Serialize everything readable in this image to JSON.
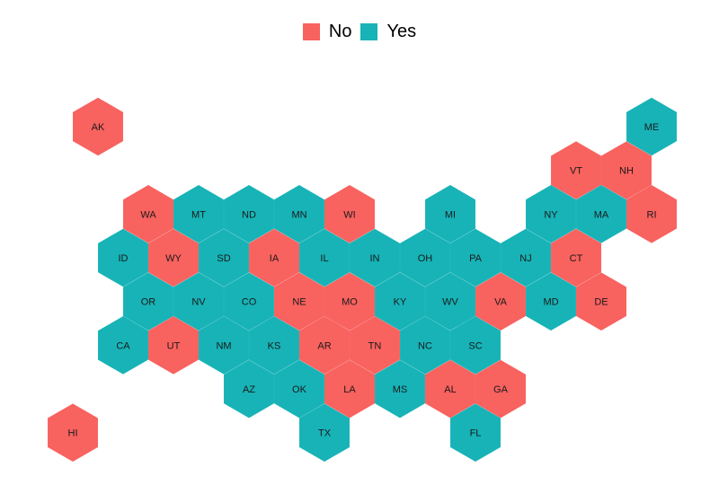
{
  "colors": {
    "No": "#F8625F",
    "Yes": "#17B3B7"
  },
  "legend": [
    {
      "key": "No",
      "label": "No"
    },
    {
      "key": "Yes",
      "label": "Yes"
    }
  ],
  "states": [
    {
      "abbr": "AK",
      "value": "No",
      "col": 0,
      "row": 0
    },
    {
      "abbr": "ME",
      "value": "Yes",
      "col": 11,
      "row": 0
    },
    {
      "abbr": "VT",
      "value": "No",
      "col": 10,
      "row": 1
    },
    {
      "abbr": "NH",
      "value": "No",
      "col": 11,
      "row": 1
    },
    {
      "abbr": "WA",
      "value": "No",
      "col": 1,
      "row": 2
    },
    {
      "abbr": "MT",
      "value": "Yes",
      "col": 2,
      "row": 2
    },
    {
      "abbr": "ND",
      "value": "Yes",
      "col": 3,
      "row": 2
    },
    {
      "abbr": "MN",
      "value": "Yes",
      "col": 4,
      "row": 2
    },
    {
      "abbr": "WI",
      "value": "No",
      "col": 5,
      "row": 2
    },
    {
      "abbr": "MI",
      "value": "Yes",
      "col": 7,
      "row": 2
    },
    {
      "abbr": "NY",
      "value": "Yes",
      "col": 9,
      "row": 2
    },
    {
      "abbr": "MA",
      "value": "Yes",
      "col": 10,
      "row": 2
    },
    {
      "abbr": "RI",
      "value": "No",
      "col": 11,
      "row": 2
    },
    {
      "abbr": "ID",
      "value": "Yes",
      "col": 1,
      "row": 3
    },
    {
      "abbr": "WY",
      "value": "No",
      "col": 2,
      "row": 3
    },
    {
      "abbr": "SD",
      "value": "Yes",
      "col": 3,
      "row": 3
    },
    {
      "abbr": "IA",
      "value": "No",
      "col": 4,
      "row": 3
    },
    {
      "abbr": "IL",
      "value": "Yes",
      "col": 5,
      "row": 3
    },
    {
      "abbr": "IN",
      "value": "Yes",
      "col": 6,
      "row": 3
    },
    {
      "abbr": "OH",
      "value": "Yes",
      "col": 7,
      "row": 3
    },
    {
      "abbr": "PA",
      "value": "Yes",
      "col": 8,
      "row": 3
    },
    {
      "abbr": "NJ",
      "value": "Yes",
      "col": 9,
      "row": 3
    },
    {
      "abbr": "CT",
      "value": "No",
      "col": 10,
      "row": 3
    },
    {
      "abbr": "OR",
      "value": "Yes",
      "col": 1,
      "row": 4
    },
    {
      "abbr": "NV",
      "value": "Yes",
      "col": 2,
      "row": 4
    },
    {
      "abbr": "CO",
      "value": "Yes",
      "col": 3,
      "row": 4
    },
    {
      "abbr": "NE",
      "value": "No",
      "col": 4,
      "row": 4
    },
    {
      "abbr": "MO",
      "value": "No",
      "col": 5,
      "row": 4
    },
    {
      "abbr": "KY",
      "value": "Yes",
      "col": 6,
      "row": 4
    },
    {
      "abbr": "WV",
      "value": "Yes",
      "col": 7,
      "row": 4
    },
    {
      "abbr": "VA",
      "value": "No",
      "col": 8,
      "row": 4
    },
    {
      "abbr": "MD",
      "value": "Yes",
      "col": 9,
      "row": 4
    },
    {
      "abbr": "DE",
      "value": "No",
      "col": 10,
      "row": 4
    },
    {
      "abbr": "CA",
      "value": "Yes",
      "col": 1,
      "row": 5
    },
    {
      "abbr": "UT",
      "value": "No",
      "col": 2,
      "row": 5
    },
    {
      "abbr": "NM",
      "value": "Yes",
      "col": 3,
      "row": 5
    },
    {
      "abbr": "KS",
      "value": "Yes",
      "col": 4,
      "row": 5
    },
    {
      "abbr": "AR",
      "value": "No",
      "col": 5,
      "row": 5
    },
    {
      "abbr": "TN",
      "value": "No",
      "col": 6,
      "row": 5
    },
    {
      "abbr": "NC",
      "value": "Yes",
      "col": 7,
      "row": 5
    },
    {
      "abbr": "SC",
      "value": "Yes",
      "col": 8,
      "row": 5
    },
    {
      "abbr": "AZ",
      "value": "Yes",
      "col": 3,
      "row": 6
    },
    {
      "abbr": "OK",
      "value": "Yes",
      "col": 4,
      "row": 6
    },
    {
      "abbr": "LA",
      "value": "No",
      "col": 5,
      "row": 6
    },
    {
      "abbr": "MS",
      "value": "Yes",
      "col": 6,
      "row": 6
    },
    {
      "abbr": "AL",
      "value": "No",
      "col": 7,
      "row": 6
    },
    {
      "abbr": "GA",
      "value": "No",
      "col": 8,
      "row": 6
    },
    {
      "abbr": "HI",
      "value": "No",
      "col": 0,
      "row": 7
    },
    {
      "abbr": "TX",
      "value": "Yes",
      "col": 5,
      "row": 7
    },
    {
      "abbr": "FL",
      "value": "Yes",
      "col": 8,
      "row": 7
    }
  ]
}
